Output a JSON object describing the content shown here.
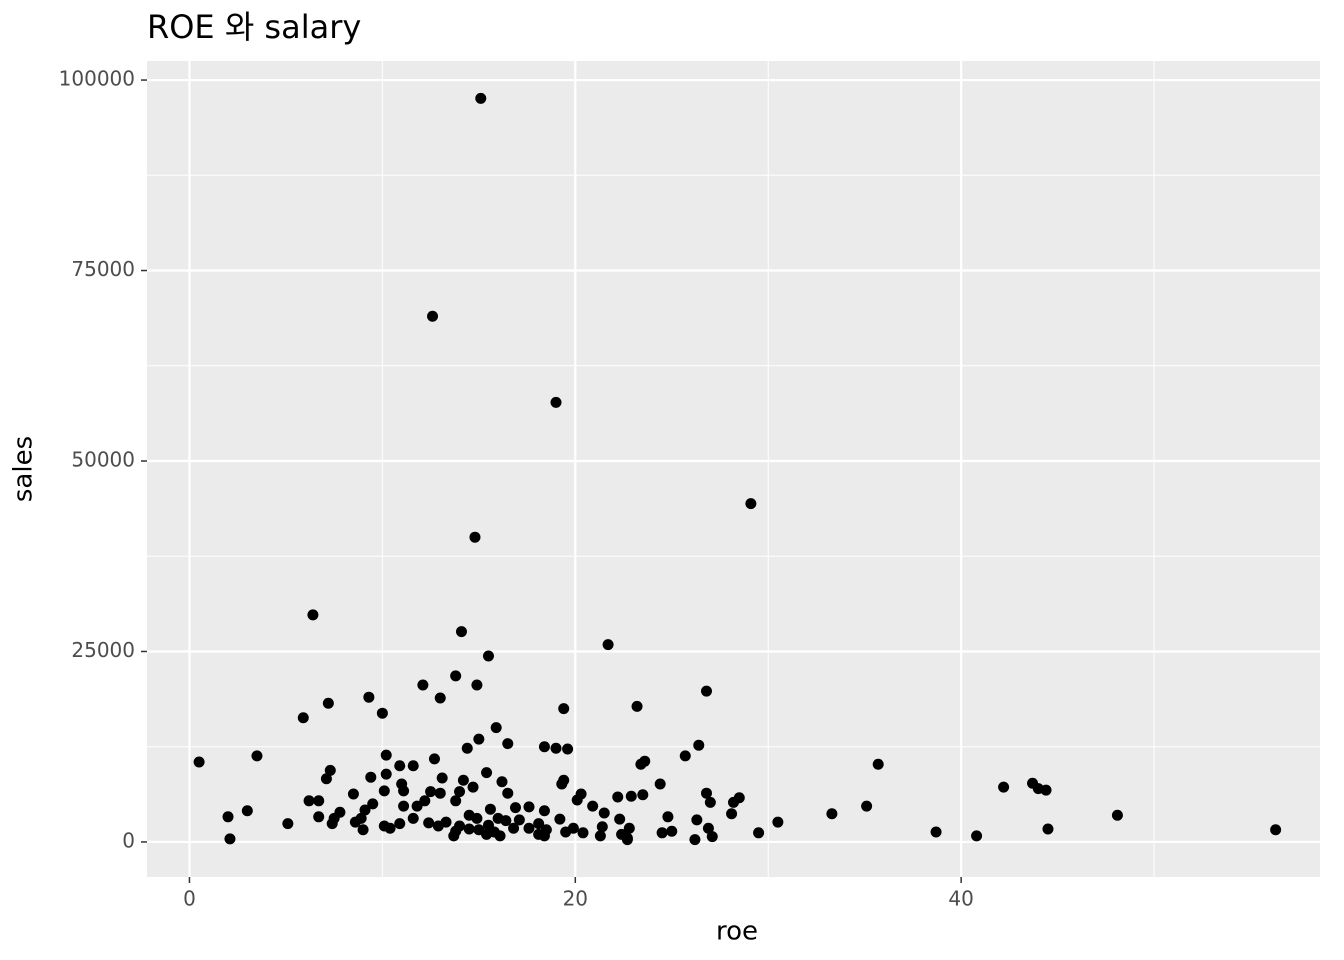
{
  "chart_data": {
    "type": "scatter",
    "title": "ROE 와 salary",
    "x_label": "roe",
    "y_label": "sales",
    "color": "#000000",
    "grid": true,
    "xlim": [
      -2.2,
      58.6
    ],
    "ylim": [
      -4600,
      102500
    ],
    "xticks": [
      0,
      20,
      40
    ],
    "yticks": [
      0,
      25000,
      50000,
      75000,
      100000
    ],
    "minor_xticks": [
      10,
      30,
      50
    ],
    "minor_yticks": [
      12500,
      37500,
      62500,
      87500
    ],
    "x": [
      15.1,
      12.6,
      19.0,
      29.1,
      14.8,
      6.4,
      14.1,
      21.7,
      15.5,
      12.1,
      14.9,
      26.8,
      9.3,
      13.0,
      7.2,
      23.2,
      19.4,
      10.0,
      5.9,
      13.8,
      15.9,
      15.0,
      16.5,
      26.4,
      14.4,
      18.4,
      19.0,
      19.6,
      10.2,
      3.5,
      25.7,
      0.5,
      23.6,
      23.4,
      35.7,
      12.7,
      10.9,
      11.6,
      7.3,
      15.4,
      10.2,
      9.4,
      7.1,
      13.1,
      14.2,
      16.2,
      19.4,
      19.3,
      11.0,
      24.4,
      42.2,
      43.7,
      44.0,
      44.4,
      14.7,
      14.0,
      12.5,
      13.0,
      10.1,
      11.1,
      16.5,
      26.8,
      8.5,
      20.3,
      28.5,
      23.5,
      22.9,
      22.2,
      20.1,
      6.2,
      6.7,
      9.5,
      12.2,
      13.8,
      28.2,
      27.0,
      20.9,
      35.1,
      11.1,
      11.8,
      9.1,
      16.9,
      17.6,
      15.6,
      3.0,
      7.8,
      18.4,
      21.5,
      33.3,
      48.1,
      28.1,
      24.8,
      6.7,
      2.0,
      14.5,
      14.9,
      16.0,
      8.9,
      7.5,
      11.6,
      22.3,
      19.2,
      26.3,
      16.4,
      17.1,
      30.5,
      5.1,
      7.4,
      8.6,
      10.9,
      12.4,
      13.3,
      15.5,
      18.1,
      10.1,
      12.9,
      14.0,
      17.6,
      14.5,
      21.4,
      22.8,
      19.9,
      26.9,
      9.0,
      10.4,
      13.8,
      15.0,
      15.8,
      16.8,
      18.5,
      19.5,
      20.4,
      44.5,
      56.3,
      25.0,
      29.5,
      38.7,
      24.5,
      22.4,
      18.1,
      21.3,
      15.4,
      16.1,
      13.7,
      40.8,
      27.1,
      22.7,
      2.1,
      26.2,
      22.7,
      18.4
    ],
    "y": [
      97600,
      69000,
      57700,
      44400,
      40000,
      29800,
      27600,
      25900,
      24400,
      20600,
      20600,
      19800,
      19000,
      18900,
      18200,
      17800,
      17500,
      16900,
      16300,
      21800,
      15000,
      13500,
      12900,
      12700,
      12300,
      12500,
      12300,
      12200,
      11400,
      11300,
      11300,
      10500,
      10600,
      10200,
      10200,
      10900,
      10000,
      10000,
      9400,
      9100,
      8900,
      8500,
      8300,
      8400,
      8100,
      7900,
      8100,
      7600,
      7600,
      7600,
      7200,
      7700,
      7000,
      6800,
      7200,
      6600,
      6600,
      6400,
      6700,
      6700,
      6400,
      6400,
      6300,
      6300,
      5800,
      6200,
      6000,
      5900,
      5500,
      5400,
      5400,
      5000,
      5400,
      5400,
      5200,
      5200,
      4700,
      4700,
      4700,
      4700,
      4200,
      4500,
      4600,
      4300,
      4100,
      3900,
      4100,
      3800,
      3700,
      3500,
      3700,
      3300,
      3300,
      3300,
      3500,
      3100,
      3100,
      3100,
      3100,
      3100,
      3000,
      3000,
      2900,
      2800,
      2900,
      2600,
      2400,
      2400,
      2600,
      2400,
      2500,
      2600,
      2200,
      2400,
      2100,
      2100,
      2100,
      1800,
      1700,
      2000,
      1800,
      1800,
      1800,
      1600,
      1800,
      1400,
      1600,
      1300,
      1800,
      1600,
      1300,
      1200,
      1700,
      1600,
      1400,
      1200,
      1300,
      1200,
      1000,
      1000,
      800,
      1000,
      800,
      800,
      800,
      700,
      500,
      400,
      300,
      300,
      800
    ]
  }
}
